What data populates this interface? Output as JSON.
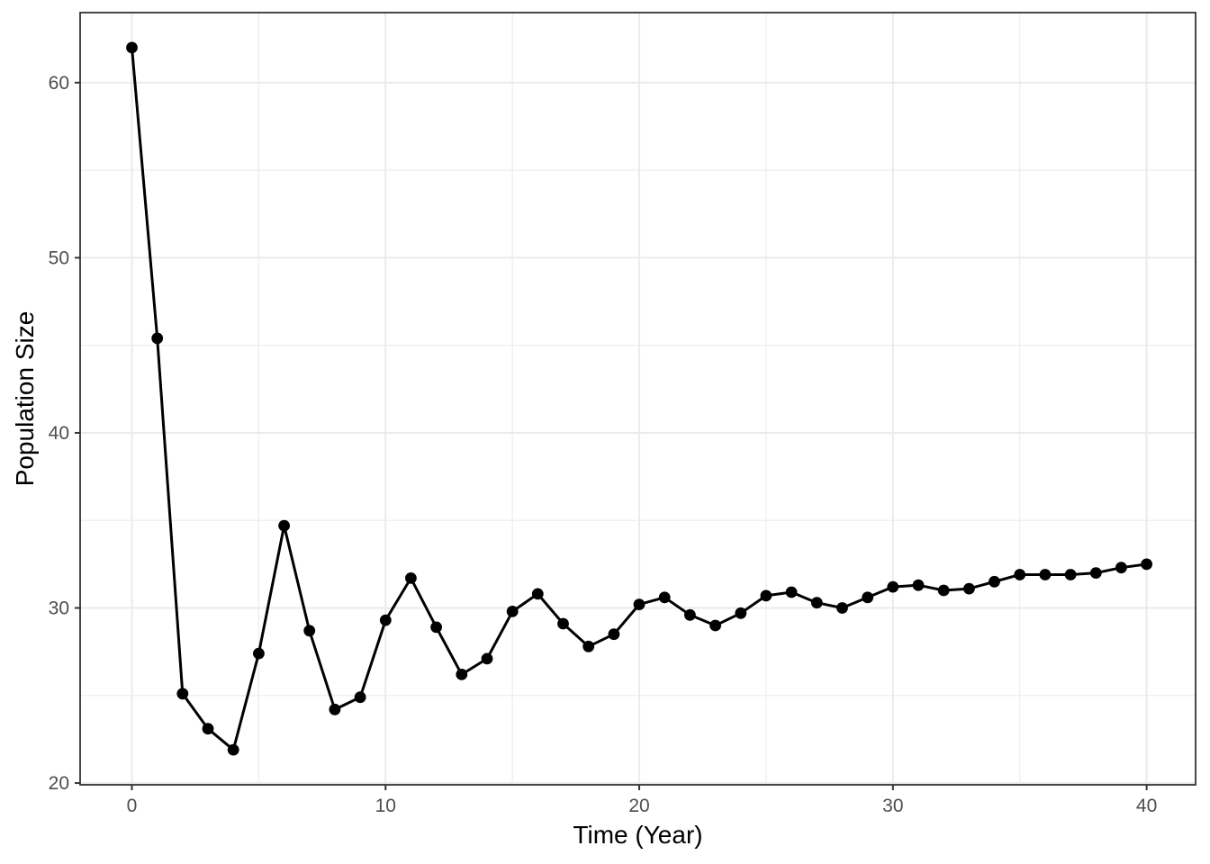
{
  "chart_data": {
    "type": "line",
    "title": "",
    "xlabel": "Time (Year)",
    "ylabel": "Population Size",
    "x": [
      0,
      1,
      2,
      3,
      4,
      5,
      6,
      7,
      8,
      9,
      10,
      11,
      12,
      13,
      14,
      15,
      16,
      17,
      18,
      19,
      20,
      21,
      22,
      23,
      24,
      25,
      26,
      27,
      28,
      29,
      30,
      31,
      32,
      33,
      34,
      35,
      36,
      37,
      38,
      39,
      40
    ],
    "y": [
      62.0,
      45.4,
      25.1,
      23.1,
      21.9,
      27.4,
      34.7,
      28.7,
      24.2,
      24.9,
      29.3,
      31.7,
      28.9,
      26.2,
      27.1,
      29.8,
      30.8,
      29.1,
      27.8,
      28.5,
      30.2,
      30.6,
      29.6,
      29.0,
      29.7,
      30.7,
      30.9,
      30.3,
      30.0,
      30.6,
      31.2,
      31.3,
      31.0,
      31.1,
      31.5,
      31.9,
      31.9,
      31.9,
      32.0,
      32.3,
      32.5
    ],
    "x_ticks": [
      0,
      10,
      20,
      30,
      40
    ],
    "y_ticks": [
      20,
      30,
      40,
      50,
      60
    ],
    "x_minor_ticks": [
      5,
      15,
      25,
      35
    ],
    "y_minor_ticks": [
      25,
      35,
      45,
      55
    ],
    "xlim": [
      -2.04,
      41.93
    ],
    "ylim": [
      19.9,
      64.0
    ],
    "grid": true,
    "legend_position": "none",
    "colors": {
      "line": "#000000",
      "point": "#000000",
      "panel_background": "#ffffff",
      "grid_major": "#ebebeb",
      "grid_minor": "#ebebeb",
      "panel_border": "#333333",
      "tick_mark": "#333333",
      "tick_label": "#4d4d4d",
      "axis_title": "#000000"
    }
  }
}
